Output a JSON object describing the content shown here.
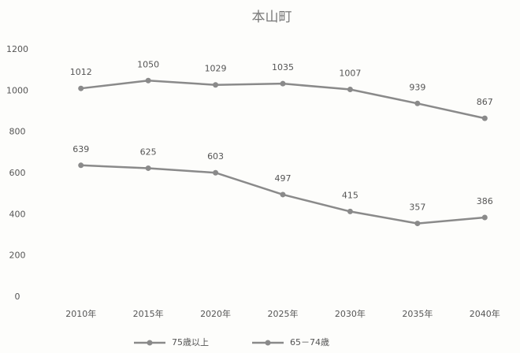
{
  "chart_data": {
    "type": "line",
    "title": "本山町",
    "categories": [
      "2010年",
      "2015年",
      "2020年",
      "2025年",
      "2030年",
      "2035年",
      "2040年"
    ],
    "series": [
      {
        "name": "75歳以上",
        "color": "#8a8a8a",
        "values": [
          1012,
          1050,
          1029,
          1035,
          1007,
          939,
          867
        ]
      },
      {
        "name": "65－74歳",
        "color": "#8a8a8a",
        "values": [
          639,
          625,
          603,
          497,
          415,
          357,
          386
        ]
      }
    ],
    "ylim": [
      0,
      1200
    ],
    "yticks": [
      0,
      200,
      400,
      600,
      800,
      1000,
      1200
    ],
    "grid": false
  }
}
